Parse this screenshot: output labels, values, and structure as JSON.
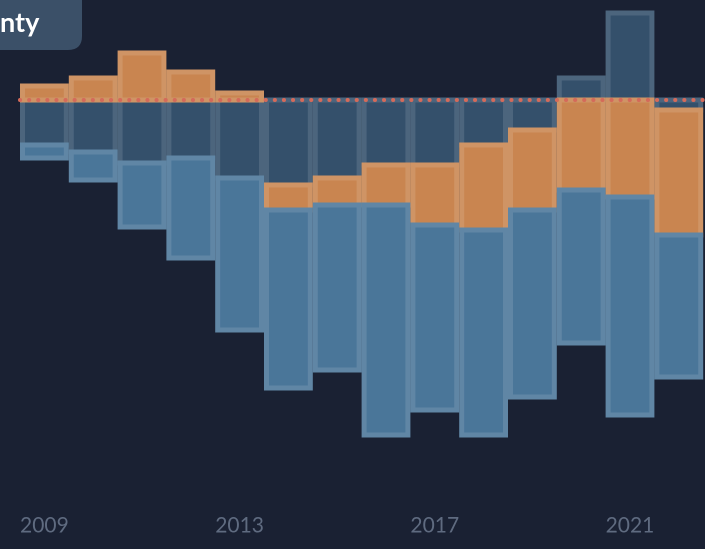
{
  "chart_data": {
    "type": "floating-bar",
    "title": "nty",
    "categories": [
      "2009",
      null,
      null,
      null,
      "2013",
      null,
      null,
      null,
      "2017",
      null,
      null,
      null,
      "2021",
      null
    ],
    "series": [
      {
        "color": "#34506b",
        "values": [
          [
            0,
            -45
          ],
          [
            0,
            -52
          ],
          [
            0,
            -63
          ],
          [
            0,
            -58
          ],
          [
            0,
            -78
          ],
          [
            0,
            -85
          ],
          [
            0,
            -78
          ],
          [
            0,
            -65
          ],
          [
            0,
            -65
          ],
          [
            0,
            -45
          ],
          [
            0,
            -30
          ],
          [
            22,
            0
          ],
          [
            87,
            0
          ],
          [
            0,
            -10
          ]
        ]
      },
      {
        "color": "#c98550",
        "values": [
          [
            14,
            0
          ],
          [
            22,
            0
          ],
          [
            47,
            0
          ],
          [
            28,
            0
          ],
          [
            7,
            0
          ],
          [
            -85,
            -110
          ],
          [
            -78,
            -105
          ],
          [
            -65,
            -105
          ],
          [
            -65,
            -125
          ],
          [
            -45,
            -130
          ],
          [
            -30,
            -110
          ],
          [
            0,
            -90
          ],
          [
            0,
            -97
          ],
          [
            -10,
            -135
          ]
        ]
      },
      {
        "color": "#4a7699",
        "values": [
          [
            -45,
            -58
          ],
          [
            -52,
            -80
          ],
          [
            -63,
            -127
          ],
          [
            -58,
            -158
          ],
          [
            -78,
            -230
          ],
          [
            -110,
            -288
          ],
          [
            -105,
            -270
          ],
          [
            -105,
            -335
          ],
          [
            -125,
            -310
          ],
          [
            -130,
            -335
          ],
          [
            -110,
            -297
          ],
          [
            -90,
            -243
          ],
          [
            -97,
            -315
          ],
          [
            -135,
            -277
          ]
        ]
      }
    ],
    "reference_line": 0,
    "reference_color": "#d46a5a",
    "ylim": [
      -449,
      100
    ]
  }
}
